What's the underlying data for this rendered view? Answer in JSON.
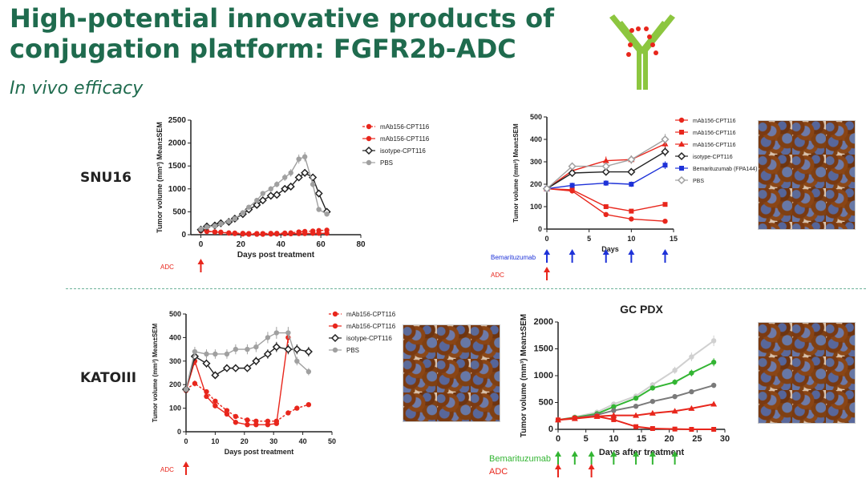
{
  "header": {
    "title_line1": "High-potential innovative products of",
    "title_line2": "conjugation platform: FGFR2b-ADC",
    "subtitle": "In vivo efficacy"
  },
  "rows": {
    "top": "SNU16",
    "bottom": "KATOIII"
  },
  "colors": {
    "title": "#1f6b4e",
    "red": "#e8261c",
    "black": "#222222",
    "gray": "#a0a0a0",
    "blue": "#1e32d8",
    "green": "#33b533",
    "lightgray": "#d0d0d0",
    "darkgray": "#7a7a7a"
  },
  "icons": [
    "antibody-logo-icon",
    "ihc-stain-image"
  ],
  "chart_data": [
    {
      "id": "snu16_left",
      "type": "line",
      "xlabel": "Days post treatment",
      "ylabel": "Tumor volume (mm³) Mean±SEM",
      "xlim": [
        -5,
        80
      ],
      "ylim": [
        0,
        2500
      ],
      "xticks": [
        0,
        20,
        40,
        60,
        80
      ],
      "yticks": [
        0,
        500,
        1000,
        1500,
        2000,
        2500
      ],
      "arrows": [
        {
          "label": "ADC",
          "x": 0,
          "color": "#e8261c"
        }
      ],
      "series": [
        {
          "name": "mAb156-CPT116",
          "color": "#e8261c",
          "marker": "circle",
          "dashed": true,
          "x": [
            0,
            3,
            7,
            10,
            14,
            17,
            21,
            24,
            28,
            31,
            35,
            38,
            42,
            45,
            49,
            52,
            56,
            59,
            63
          ],
          "y": [
            80,
            70,
            60,
            55,
            40,
            35,
            30,
            25,
            25,
            25,
            30,
            30,
            35,
            40,
            60,
            70,
            80,
            90,
            100
          ]
        },
        {
          "name": "mAb156-CPT116",
          "color": "#e8261c",
          "marker": "circle",
          "dashed": false,
          "x": [
            0,
            3,
            7,
            10,
            14,
            17,
            21,
            24,
            28,
            31,
            35,
            38,
            42,
            45,
            49,
            52,
            56,
            59,
            63
          ],
          "y": [
            90,
            80,
            60,
            50,
            35,
            25,
            15,
            10,
            10,
            10,
            15,
            15,
            20,
            20,
            25,
            25,
            30,
            30,
            30
          ]
        },
        {
          "name": "isotype-CPT116",
          "color": "#222222",
          "marker": "diamond",
          "dashed": false,
          "x": [
            0,
            3,
            7,
            10,
            14,
            17,
            21,
            24,
            28,
            31,
            35,
            38,
            42,
            45,
            49,
            52,
            56,
            59,
            63
          ],
          "y": [
            110,
            180,
            200,
            250,
            280,
            350,
            450,
            550,
            650,
            750,
            850,
            870,
            1000,
            1050,
            1250,
            1350,
            1250,
            900,
            500
          ]
        },
        {
          "name": "PBS",
          "color": "#a0a0a0",
          "marker": "circle",
          "dashed": false,
          "x": [
            0,
            3,
            7,
            10,
            14,
            17,
            21,
            24,
            28,
            31,
            35,
            38,
            42,
            45,
            49,
            52,
            56,
            59,
            63
          ],
          "y": [
            120,
            170,
            190,
            240,
            290,
            350,
            480,
            600,
            750,
            900,
            1000,
            1100,
            1250,
            1350,
            1650,
            1700,
            1100,
            550,
            450
          ]
        }
      ]
    },
    {
      "id": "snu16_right",
      "type": "line",
      "xlabel": "Days",
      "ylabel": "Tumor volume (mm³) Mean±SEM",
      "xlim": [
        0,
        15
      ],
      "ylim": [
        0,
        500
      ],
      "xticks": [
        0,
        5,
        10,
        15
      ],
      "yticks": [
        0,
        100,
        200,
        300,
        400,
        500
      ],
      "arrows": [
        {
          "label": "Bemarituzumab",
          "x": [
            0,
            3,
            7,
            10,
            14
          ],
          "color": "#1e32d8"
        },
        {
          "label": "ADC",
          "x": [
            0
          ],
          "color": "#e8261c"
        }
      ],
      "series": [
        {
          "name": "mAb156-CPT116",
          "color": "#e8261c",
          "marker": "circle",
          "x": [
            0,
            3,
            7,
            10,
            14
          ],
          "y": [
            180,
            170,
            65,
            45,
            35
          ]
        },
        {
          "name": "mAb156-CPT116",
          "color": "#e8261c",
          "marker": "square",
          "x": [
            0,
            3,
            7,
            10,
            14
          ],
          "y": [
            180,
            175,
            100,
            80,
            110
          ]
        },
        {
          "name": "mAb156-CPT116",
          "color": "#e8261c",
          "marker": "triangle",
          "x": [
            0,
            3,
            7,
            10,
            14
          ],
          "y": [
            180,
            260,
            305,
            310,
            380
          ]
        },
        {
          "name": "isotype-CPT116",
          "color": "#222222",
          "marker": "diamond",
          "x": [
            0,
            3,
            7,
            10,
            14
          ],
          "y": [
            180,
            250,
            255,
            255,
            345
          ]
        },
        {
          "name": "Bemarituzumab (FPA144)",
          "color": "#1e32d8",
          "marker": "square",
          "x": [
            0,
            3,
            7,
            10,
            14
          ],
          "y": [
            180,
            195,
            205,
            200,
            285
          ]
        },
        {
          "name": "PBS",
          "color": "#a0a0a0",
          "marker": "diamond",
          "x": [
            0,
            3,
            7,
            10,
            14
          ],
          "y": [
            180,
            280,
            280,
            310,
            400
          ]
        }
      ]
    },
    {
      "id": "katoiii_left",
      "type": "line",
      "xlabel": "Days post treatment",
      "ylabel": "Tumor volume (mm³) Mean±SEM",
      "xlim": [
        0,
        50
      ],
      "ylim": [
        0,
        500
      ],
      "xticks": [
        0,
        10,
        20,
        30,
        40,
        50
      ],
      "yticks": [
        0,
        100,
        200,
        300,
        400,
        500
      ],
      "arrows": [
        {
          "label": "ADC",
          "x": 0,
          "color": "#e8261c"
        }
      ],
      "series": [
        {
          "name": "mAb156-CPT116",
          "color": "#e8261c",
          "marker": "circle",
          "dashed": true,
          "x": [
            0,
            3,
            7,
            10,
            14,
            17,
            21,
            24,
            28,
            31,
            35,
            38,
            42
          ],
          "y": [
            180,
            205,
            170,
            130,
            90,
            65,
            50,
            45,
            45,
            45,
            80,
            100,
            115
          ]
        },
        {
          "name": "mAb156-CPT116",
          "color": "#e8261c",
          "marker": "circle",
          "dashed": false,
          "x": [
            0,
            3,
            7,
            10,
            14,
            17,
            21,
            24,
            28,
            31,
            35
          ],
          "y": [
            175,
            300,
            150,
            110,
            75,
            40,
            30,
            30,
            30,
            35,
            400
          ]
        },
        {
          "name": "isotype-CPT116",
          "color": "#222222",
          "marker": "diamond",
          "dashed": false,
          "x": [
            0,
            3,
            7,
            10,
            14,
            17,
            21,
            24,
            28,
            31,
            35,
            38,
            42
          ],
          "y": [
            180,
            320,
            290,
            240,
            270,
            270,
            270,
            300,
            330,
            360,
            350,
            350,
            340
          ]
        },
        {
          "name": "PBS",
          "color": "#a0a0a0",
          "marker": "circle",
          "dashed": false,
          "x": [
            0,
            3,
            7,
            10,
            14,
            17,
            21,
            24,
            28,
            31,
            35,
            38,
            42
          ],
          "y": [
            180,
            340,
            330,
            330,
            330,
            350,
            350,
            360,
            400,
            420,
            420,
            300,
            255
          ]
        }
      ]
    },
    {
      "id": "gc_pdx",
      "type": "line",
      "title": "GC PDX",
      "xlabel": "Days after treatment",
      "ylabel": "Tumor volume (mm³) Mean±SEM",
      "xlim": [
        0,
        30
      ],
      "ylim": [
        0,
        2000
      ],
      "xticks": [
        0,
        5,
        10,
        15,
        20,
        25,
        30
      ],
      "yticks": [
        0,
        500,
        1000,
        1500,
        2000
      ],
      "arrows": [
        {
          "label": "Bemarituzumab",
          "x": [
            0,
            3,
            6,
            10,
            14,
            17,
            21
          ],
          "color": "#33b533"
        },
        {
          "label": "ADC",
          "x": [
            0,
            6
          ],
          "color": "#e8261c"
        }
      ],
      "series": [
        {
          "name": "lightgray",
          "color": "#d0d0d0",
          "marker": "circle",
          "x": [
            0,
            3,
            7,
            10,
            14,
            17,
            21,
            24,
            28
          ],
          "y": [
            175,
            230,
            320,
            470,
            620,
            830,
            1100,
            1350,
            1650
          ]
        },
        {
          "name": "green",
          "color": "#33b533",
          "marker": "circle",
          "x": [
            0,
            3,
            7,
            10,
            14,
            17,
            21,
            24,
            28
          ],
          "y": [
            175,
            220,
            290,
            420,
            580,
            770,
            880,
            1050,
            1250
          ]
        },
        {
          "name": "darkgray",
          "color": "#7a7a7a",
          "marker": "circle",
          "x": [
            0,
            3,
            7,
            10,
            14,
            17,
            21,
            24,
            28
          ],
          "y": [
            175,
            210,
            270,
            350,
            430,
            520,
            610,
            700,
            820
          ]
        },
        {
          "name": "red",
          "color": "#e8261c",
          "marker": "triangle",
          "x": [
            0,
            3,
            7,
            10,
            14,
            17,
            21,
            24,
            28
          ],
          "y": [
            175,
            200,
            240,
            260,
            260,
            300,
            340,
            390,
            470
          ]
        },
        {
          "name": "red2",
          "color": "#e8261c",
          "marker": "square",
          "x": [
            0,
            3,
            7,
            10,
            14,
            17,
            21,
            24,
            28
          ],
          "y": [
            175,
            210,
            240,
            180,
            50,
            15,
            5,
            0,
            0
          ]
        }
      ]
    }
  ]
}
